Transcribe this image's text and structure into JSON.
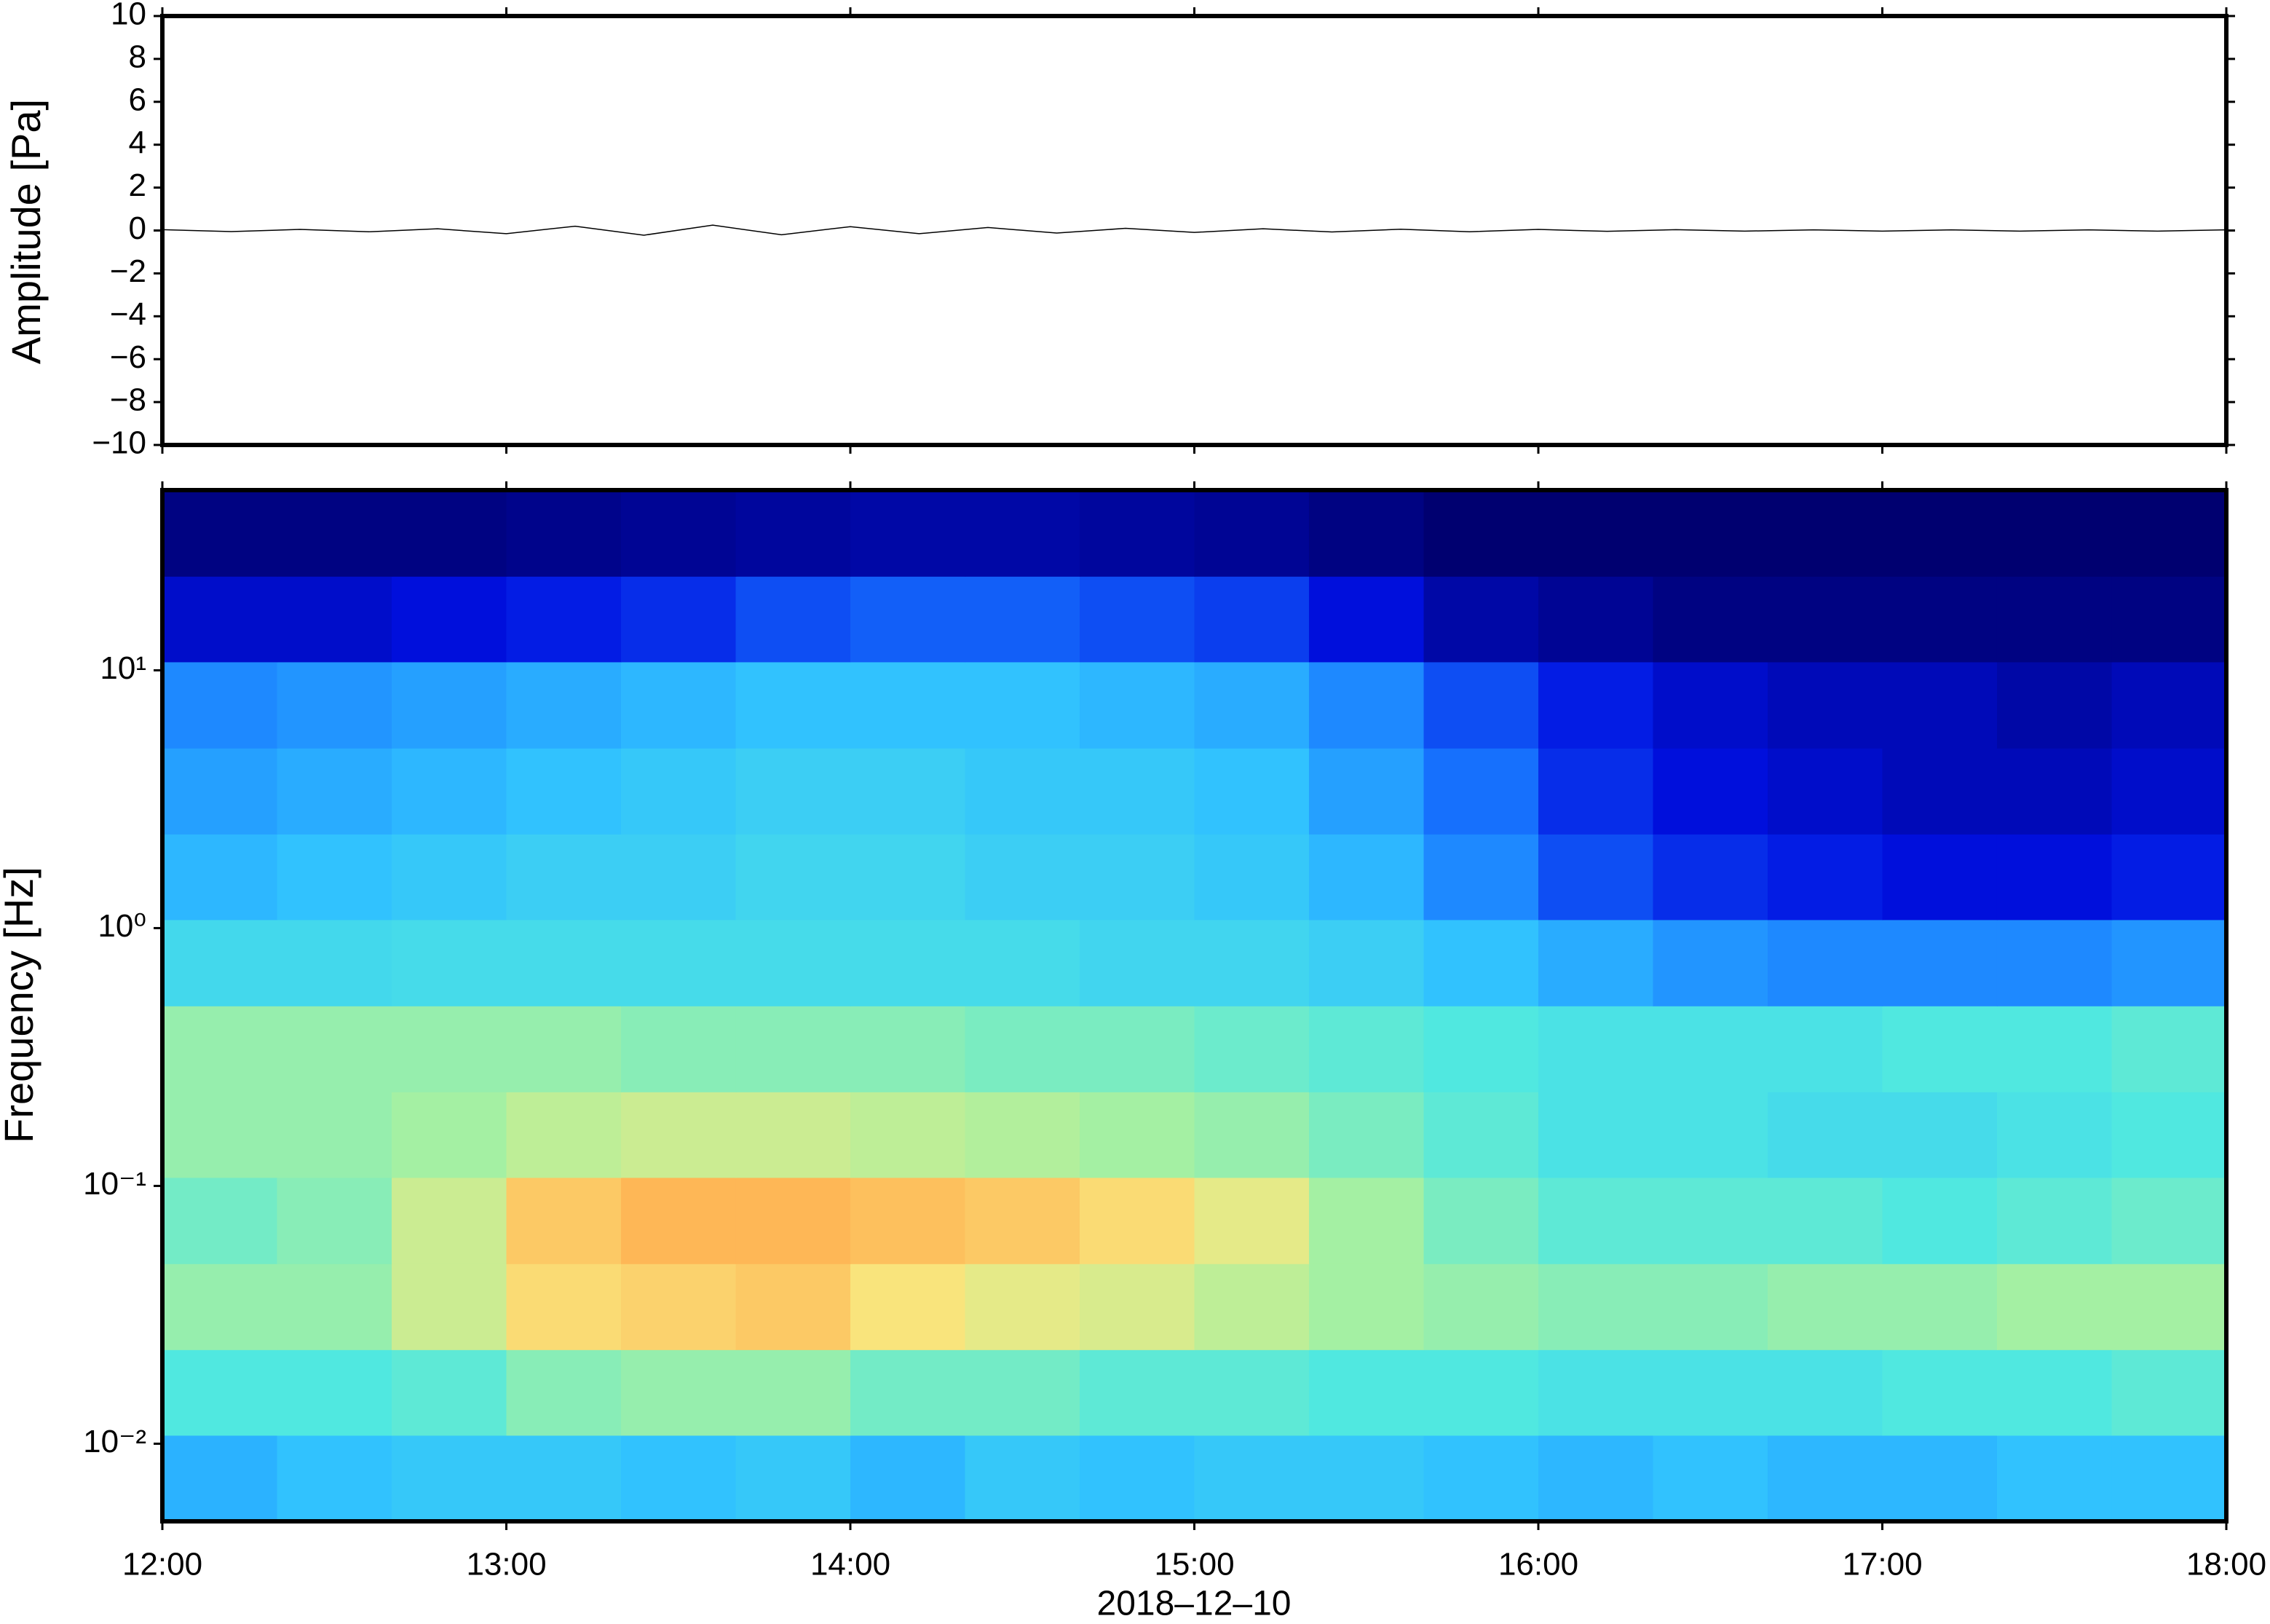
{
  "chart_data": [
    {
      "type": "line",
      "ylabel": "Amplitude [Pa]",
      "color": "#000000",
      "x": [
        12,
        12.2,
        12.4,
        12.6,
        12.8,
        13,
        13.2,
        13.4,
        13.6,
        13.8,
        14,
        14.2,
        14.4,
        14.6,
        14.8,
        15,
        15.2,
        15.4,
        15.6,
        15.8,
        16,
        16.2,
        16.4,
        16.6,
        16.8,
        17,
        17.2,
        17.4,
        17.6,
        17.8,
        18
      ],
      "values": [
        0.04,
        -0.05,
        0.05,
        -0.06,
        0.08,
        -0.15,
        0.2,
        -0.22,
        0.25,
        -0.2,
        0.18,
        -0.15,
        0.14,
        -0.12,
        0.1,
        -0.09,
        0.08,
        -0.07,
        0.06,
        -0.06,
        0.05,
        -0.04,
        0.04,
        -0.03,
        0.03,
        -0.03,
        0.03,
        -0.03,
        0.03,
        -0.03,
        0.03
      ],
      "xlim": [
        12,
        18
      ],
      "ylim": [
        -10,
        10
      ],
      "yticks": [
        {
          "value": -10,
          "label": "−10"
        },
        {
          "value": -8,
          "label": "−8"
        },
        {
          "value": -6,
          "label": "−6"
        },
        {
          "value": -4,
          "label": "−4"
        },
        {
          "value": -2,
          "label": "−2"
        },
        0,
        2,
        4,
        6,
        8,
        10
      ]
    },
    {
      "type": "heatmap",
      "ylabel": "Frequency [Hz]",
      "xlabel": "2018–12–10",
      "log_y": true,
      "xlim": [
        12,
        18
      ],
      "ylim": [
        0.005,
        50
      ],
      "xticks": [
        {
          "value": 12,
          "label": "12:00"
        },
        {
          "value": 13,
          "label": "13:00"
        },
        {
          "value": 14,
          "label": "14:00"
        },
        {
          "value": 15,
          "label": "15:00"
        },
        {
          "value": 16,
          "label": "16:00"
        },
        {
          "value": 17,
          "label": "17:00"
        },
        {
          "value": 18,
          "label": "18:00"
        }
      ],
      "yticks": [
        {
          "value": 0.01,
          "label": "10⁻²"
        },
        {
          "value": 0.1,
          "label": "10⁻¹"
        },
        {
          "value": 1,
          "label": "10⁰"
        },
        {
          "value": 10,
          "label": "10¹"
        }
      ],
      "zlim": [
        0,
        1
      ],
      "colormap": [
        "#000070",
        "#0010e0",
        "#1878ff",
        "#30c0ff",
        "#50e8e0",
        "#a8f0a0",
        "#f8e880",
        "#ffb050",
        "#ff7030"
      ],
      "xbins": [
        12,
        12.3333,
        12.6667,
        13,
        13.3333,
        13.6667,
        14,
        14.3333,
        14.6667,
        15,
        15.3333,
        15.6667,
        16,
        16.3333,
        16.6667,
        17,
        17.3333,
        17.6667,
        18
      ],
      "ybins": [
        0.005,
        0.0108,
        0.0232,
        0.05,
        0.108,
        0.232,
        0.5,
        1.08,
        2.32,
        5,
        10.8,
        23.2,
        50
      ],
      "values": [
        [
          0.35,
          0.38,
          0.4,
          0.4,
          0.38,
          0.4,
          0.36,
          0.4,
          0.38,
          0.4,
          0.4,
          0.38,
          0.36,
          0.38,
          0.36,
          0.36,
          0.38,
          0.38
        ],
        [
          0.5,
          0.5,
          0.52,
          0.58,
          0.6,
          0.6,
          0.55,
          0.55,
          0.52,
          0.52,
          0.5,
          0.5,
          0.48,
          0.48,
          0.48,
          0.5,
          0.5,
          0.52
        ],
        [
          0.6,
          0.6,
          0.68,
          0.78,
          0.8,
          0.82,
          0.76,
          0.72,
          0.7,
          0.66,
          0.62,
          0.6,
          0.58,
          0.58,
          0.6,
          0.6,
          0.62,
          0.62
        ],
        [
          0.55,
          0.58,
          0.68,
          0.82,
          0.86,
          0.86,
          0.84,
          0.82,
          0.78,
          0.72,
          0.62,
          0.56,
          0.52,
          0.52,
          0.52,
          0.5,
          0.52,
          0.54
        ],
        [
          0.6,
          0.6,
          0.62,
          0.66,
          0.68,
          0.68,
          0.66,
          0.64,
          0.62,
          0.6,
          0.56,
          0.52,
          0.48,
          0.48,
          0.46,
          0.46,
          0.48,
          0.5
        ],
        [
          0.6,
          0.6,
          0.6,
          0.6,
          0.58,
          0.58,
          0.58,
          0.56,
          0.56,
          0.54,
          0.52,
          0.5,
          0.48,
          0.48,
          0.48,
          0.5,
          0.5,
          0.52
        ],
        [
          0.45,
          0.45,
          0.46,
          0.46,
          0.46,
          0.46,
          0.46,
          0.46,
          0.44,
          0.44,
          0.42,
          0.38,
          0.34,
          0.3,
          0.28,
          0.28,
          0.28,
          0.3
        ],
        [
          0.36,
          0.38,
          0.4,
          0.42,
          0.42,
          0.44,
          0.44,
          0.42,
          0.42,
          0.4,
          0.36,
          0.28,
          0.2,
          0.16,
          0.14,
          0.12,
          0.12,
          0.14
        ],
        [
          0.32,
          0.34,
          0.36,
          0.38,
          0.4,
          0.42,
          0.42,
          0.4,
          0.4,
          0.38,
          0.32,
          0.24,
          0.16,
          0.12,
          0.1,
          0.08,
          0.08,
          0.1
        ],
        [
          0.28,
          0.3,
          0.32,
          0.34,
          0.36,
          0.38,
          0.38,
          0.38,
          0.36,
          0.34,
          0.28,
          0.2,
          0.14,
          0.1,
          0.08,
          0.08,
          0.06,
          0.08
        ],
        [
          0.1,
          0.1,
          0.12,
          0.14,
          0.16,
          0.2,
          0.22,
          0.22,
          0.2,
          0.18,
          0.12,
          0.06,
          0.04,
          0.02,
          0.02,
          0.02,
          0.02,
          0.02
        ],
        [
          0.02,
          0.02,
          0.02,
          0.03,
          0.04,
          0.05,
          0.06,
          0.06,
          0.05,
          0.04,
          0.02,
          0,
          0,
          0,
          0,
          0,
          0,
          0
        ]
      ]
    }
  ]
}
